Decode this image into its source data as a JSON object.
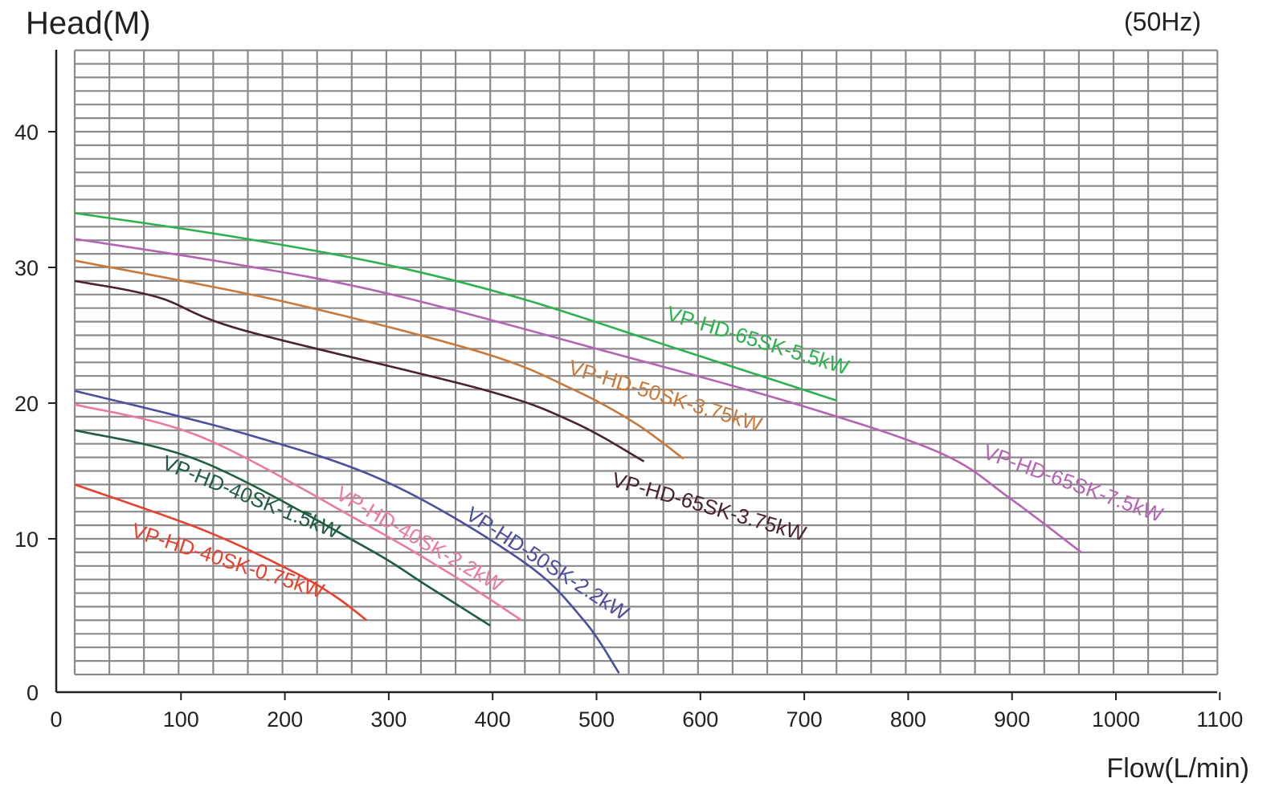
{
  "chart_data": {
    "type": "line",
    "title": "",
    "ylabel": "Head(M)",
    "xlabel": "Flow(L/min)",
    "annotation": "(50Hz)",
    "xlim": [
      0,
      1100
    ],
    "ylim": [
      0,
      46
    ],
    "x_ticks": [
      0,
      100,
      200,
      300,
      400,
      500,
      600,
      700,
      800,
      900,
      1000,
      1100
    ],
    "y_ticks": [
      0,
      10,
      20,
      30,
      40
    ],
    "grid": true,
    "series": [
      {
        "name": "VP-HD-65SK-5.5kW",
        "color": "#2bb24c",
        "points": [
          [
            0,
            34.0
          ],
          [
            150,
            32.3
          ],
          [
            300,
            30.2
          ],
          [
            430,
            27.7
          ],
          [
            560,
            24.5
          ],
          [
            733,
            20.2
          ]
        ]
      },
      {
        "name": "VP-HD-65SK-7.5kW",
        "color": "#b464b4",
        "points": [
          [
            0,
            32.1
          ],
          [
            150,
            30.3
          ],
          [
            300,
            28.1
          ],
          [
            517,
            23.7
          ],
          [
            700,
            19.8
          ],
          [
            834,
            16.3
          ],
          [
            900,
            13.0
          ],
          [
            969,
            9.0
          ]
        ]
      },
      {
        "name": "VP-HD-50SK-3.75kW",
        "color": "#c97a3a",
        "points": [
          [
            0,
            30.5
          ],
          [
            200,
            27.5
          ],
          [
            393,
            23.7
          ],
          [
            480,
            21.0
          ],
          [
            540,
            18.5
          ],
          [
            586,
            15.9
          ]
        ]
      },
      {
        "name": "VP-HD-65SK-3.75kW",
        "color": "#4a2233",
        "points": [
          [
            0,
            29.0
          ],
          [
            80,
            27.8
          ],
          [
            161,
            25.4
          ],
          [
            393,
            21.0
          ],
          [
            480,
            18.6
          ],
          [
            548,
            15.7
          ]
        ]
      },
      {
        "name": "VP-HD-50SK-2.2kW",
        "color": "#4b4f9e",
        "points": [
          [
            0,
            20.9
          ],
          [
            161,
            17.8
          ],
          [
            300,
            14.2
          ],
          [
            432,
            8.3
          ],
          [
            490,
            4.0
          ],
          [
            524,
            0.1
          ]
        ]
      },
      {
        "name": "VP-HD-40SK-2.2kW",
        "color": "#ea7aa0",
        "points": [
          [
            0,
            19.9
          ],
          [
            122,
            17.5
          ],
          [
            277,
            11.2
          ],
          [
            360,
            7.5
          ],
          [
            430,
            4.0
          ]
        ]
      },
      {
        "name": "VP-HD-40SK-1.5kW",
        "color": "#1f5e40",
        "points": [
          [
            0,
            18.0
          ],
          [
            122,
            15.7
          ],
          [
            277,
            9.5
          ],
          [
            340,
            6.5
          ],
          [
            400,
            3.6
          ]
        ]
      },
      {
        "name": "VP-HD-40SK-0.75kW",
        "color": "#e8402f",
        "points": [
          [
            0,
            14.0
          ],
          [
            122,
            10.7
          ],
          [
            207,
            7.7
          ],
          [
            250,
            5.8
          ],
          [
            281,
            4.0
          ]
        ]
      }
    ]
  }
}
